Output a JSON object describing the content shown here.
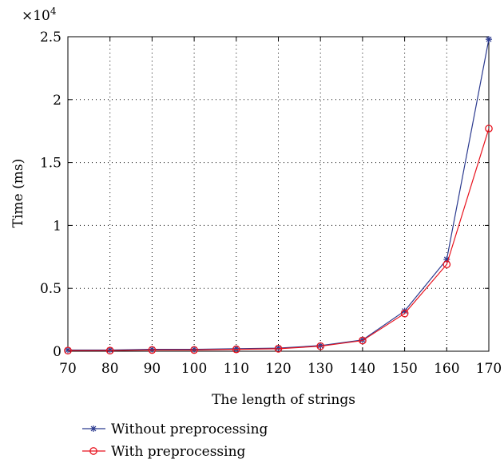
{
  "chart_data": {
    "type": "line",
    "title": "",
    "xlabel": "The length of strings",
    "ylabel": "Time (ms)",
    "y_exponent_label": {
      "base": "×10",
      "power": "4"
    },
    "y_multiplier": 10000,
    "xlim": [
      70,
      170
    ],
    "ylim": [
      0,
      2.5
    ],
    "x_ticks": [
      70,
      80,
      90,
      100,
      110,
      120,
      130,
      140,
      150,
      160,
      170
    ],
    "x_tick_labels": [
      "70",
      "80",
      "90",
      "100",
      "110",
      "120",
      "130",
      "140",
      "150",
      "160",
      "170"
    ],
    "y_ticks": [
      0,
      0.5,
      1,
      1.5,
      2,
      2.5
    ],
    "y_tick_labels": [
      "0",
      "0.5",
      "1",
      "1.5",
      "2",
      "2.5"
    ],
    "grid": true,
    "legend_position": "below-left",
    "x": [
      70,
      80,
      90,
      100,
      110,
      120,
      130,
      140,
      150,
      160,
      170
    ],
    "series": [
      {
        "name": "Without preprocessing",
        "color": "#2b3a8f",
        "marker": "star",
        "values": [
          0.01,
          0.01,
          0.015,
          0.015,
          0.02,
          0.025,
          0.045,
          0.09,
          0.32,
          0.73,
          2.48
        ]
      },
      {
        "name": "With preprocessing",
        "color": "#e8121d",
        "marker": "circle",
        "values": [
          0.005,
          0.005,
          0.01,
          0.01,
          0.015,
          0.02,
          0.04,
          0.085,
          0.3,
          0.69,
          1.77
        ]
      }
    ]
  }
}
